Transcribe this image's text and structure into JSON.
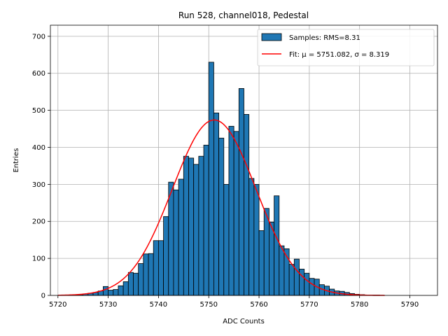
{
  "chart_data": {
    "type": "bar",
    "title": "Run 528, channel018, Pedestal",
    "xlabel": "ADC Counts",
    "ylabel": "Entries",
    "xlim": [
      5718.5,
      5795.5
    ],
    "ylim": [
      0,
      730
    ],
    "xticks": [
      5720,
      5730,
      5740,
      5750,
      5760,
      5770,
      5780,
      5790
    ],
    "yticks": [
      0,
      100,
      200,
      300,
      400,
      500,
      600,
      700
    ],
    "grid": true,
    "legend_position": "top-right",
    "bar_color": "#1f77b4",
    "fit_color": "#ff0000",
    "histogram": {
      "name": "Samples: RMS=8.31",
      "bin_edges_start": 5720,
      "bin_width": 1,
      "values": [
        0,
        0,
        1,
        1,
        2,
        4,
        6,
        8,
        12,
        24,
        14,
        16,
        26,
        37,
        62,
        60,
        86,
        112,
        113,
        148,
        148,
        213,
        306,
        285,
        314,
        376,
        371,
        354,
        376,
        406,
        630,
        493,
        425,
        300,
        457,
        443,
        559,
        489,
        316,
        300,
        175,
        235,
        198,
        269,
        134,
        126,
        84,
        98,
        71,
        60,
        46,
        44,
        29,
        25,
        17,
        12,
        11,
        8,
        5,
        3,
        2,
        1,
        1,
        1,
        0
      ]
    },
    "fit": {
      "name": "Fit: μ = 5751.082, σ = 8.319",
      "mu": 5751.082,
      "sigma": 8.319,
      "amplitude": 474,
      "x_range": [
        5720,
        5785
      ]
    }
  }
}
